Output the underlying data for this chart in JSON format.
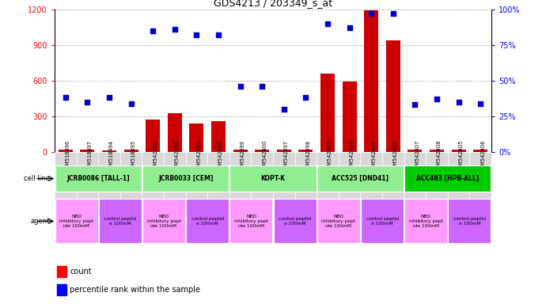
{
  "title": "GDS4213 / 203349_s_at",
  "samples": [
    "GSM518496",
    "GSM518497",
    "GSM518494",
    "GSM518495",
    "GSM542395",
    "GSM542396",
    "GSM542393",
    "GSM542394",
    "GSM542399",
    "GSM542400",
    "GSM542397",
    "GSM542398",
    "GSM542403",
    "GSM542404",
    "GSM542401",
    "GSM542402",
    "GSM542407",
    "GSM542408",
    "GSM542405",
    "GSM542406"
  ],
  "counts": [
    20,
    18,
    16,
    18,
    270,
    325,
    240,
    260,
    20,
    22,
    20,
    22,
    660,
    590,
    1190,
    940,
    20,
    20,
    22,
    20
  ],
  "percentiles": [
    38,
    35,
    38,
    34,
    85,
    86,
    82,
    82,
    46,
    46,
    30,
    38,
    90,
    87,
    97,
    97,
    33,
    37,
    35,
    34
  ],
  "cell_lines": [
    {
      "label": "JCRB0086 [TALL-1]",
      "start": 0,
      "end": 4,
      "color": "#90ee90"
    },
    {
      "label": "JCRB0033 [CEM]",
      "start": 4,
      "end": 8,
      "color": "#90ee90"
    },
    {
      "label": "KOPT-K",
      "start": 8,
      "end": 12,
      "color": "#90ee90"
    },
    {
      "label": "ACC525 [DND41]",
      "start": 12,
      "end": 16,
      "color": "#90ee90"
    },
    {
      "label": "ACC483 [HPB-ALL]",
      "start": 16,
      "end": 20,
      "color": "#00cc00"
    }
  ],
  "agents": [
    {
      "label": "NBD\ninhibitory pept\nide 100mM",
      "start": 0,
      "end": 2,
      "color": "#ff99ff"
    },
    {
      "label": "control peptid\ne 100mM",
      "start": 2,
      "end": 4,
      "color": "#cc66ff"
    },
    {
      "label": "NBD\ninhibitory pept\nide 100mM",
      "start": 4,
      "end": 6,
      "color": "#ff99ff"
    },
    {
      "label": "control peptid\ne 100mM",
      "start": 6,
      "end": 8,
      "color": "#cc66ff"
    },
    {
      "label": "NBD\ninhibitory pept\nide 100mM",
      "start": 8,
      "end": 10,
      "color": "#ff99ff"
    },
    {
      "label": "control peptid\ne 100mM",
      "start": 10,
      "end": 12,
      "color": "#cc66ff"
    },
    {
      "label": "NBD\ninhibitory pept\nide 100mM",
      "start": 12,
      "end": 14,
      "color": "#ff99ff"
    },
    {
      "label": "control peptid\ne 100mM",
      "start": 14,
      "end": 16,
      "color": "#cc66ff"
    },
    {
      "label": "NBD\ninhibitory pept\nide 100mM",
      "start": 16,
      "end": 18,
      "color": "#ff99ff"
    },
    {
      "label": "control peptid\ne 100mM",
      "start": 18,
      "end": 20,
      "color": "#cc66ff"
    }
  ],
  "ylim_left": [
    0,
    1200
  ],
  "ylim_right": [
    0,
    100
  ],
  "yticks_left": [
    0,
    300,
    600,
    900,
    1200
  ],
  "yticks_right": [
    0,
    25,
    50,
    75,
    100
  ],
  "bar_color": "#cc0000",
  "scatter_color": "#0000cc",
  "bg_color": "#ffffff",
  "grid_color": "#888888",
  "xticklabel_bg": "#d8d8d8"
}
